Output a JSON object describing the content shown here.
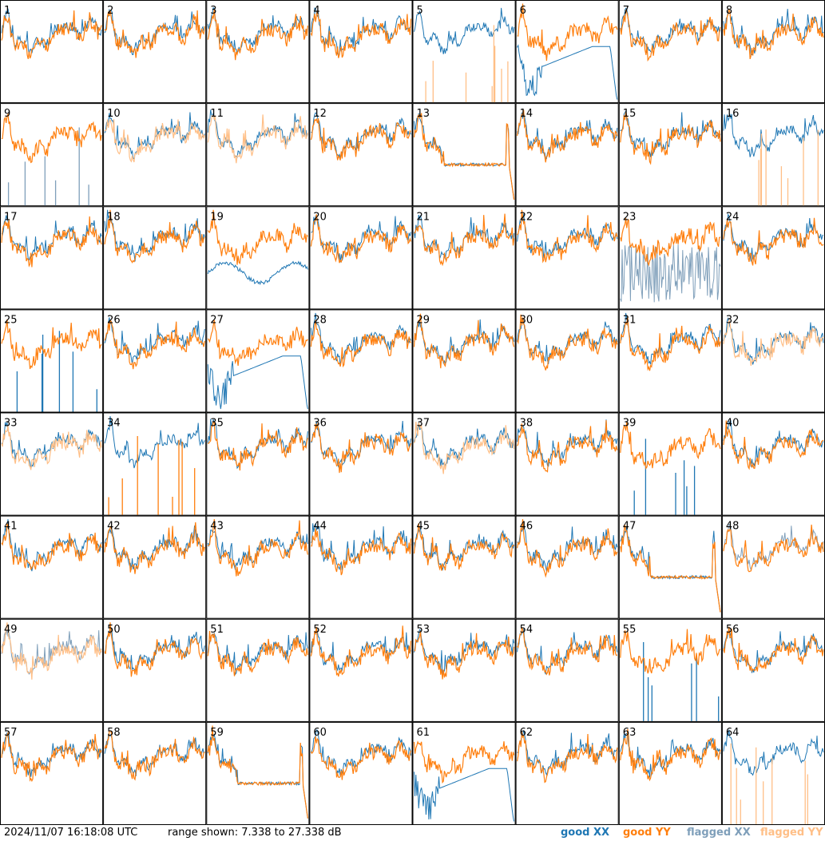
{
  "footer": {
    "timestamp": "2024/11/07 16:18:08 UTC",
    "range": "range shown: 7.338 to 27.338 dB"
  },
  "legend": [
    {
      "label": "good XX",
      "color": "#1f77b4"
    },
    {
      "label": "good YY",
      "color": "#ff7f0e"
    },
    {
      "label": "flagged XX",
      "color": "#7f9fba"
    },
    {
      "label": "flagged YY",
      "color": "#ffbf87"
    }
  ],
  "chart_data": {
    "type": "line",
    "grid_rows": 8,
    "grid_cols": 8,
    "y_range_db": [
      7.338,
      27.338
    ],
    "panels": [
      {
        "id": "1",
        "xx": "good",
        "yy": "good",
        "pattern": "normal"
      },
      {
        "id": "2",
        "xx": "good",
        "yy": "good",
        "pattern": "normal"
      },
      {
        "id": "3",
        "xx": "good",
        "yy": "good",
        "pattern": "normal"
      },
      {
        "id": "4",
        "xx": "good",
        "yy": "good",
        "pattern": "normal"
      },
      {
        "id": "5",
        "xx": "good",
        "yy": "flagged",
        "pattern": "yy-spikes"
      },
      {
        "id": "6",
        "xx": "good",
        "yy": "good",
        "pattern": "xx-dip"
      },
      {
        "id": "7",
        "xx": "good",
        "yy": "good",
        "pattern": "normal"
      },
      {
        "id": "8",
        "xx": "good",
        "yy": "good",
        "pattern": "normal"
      },
      {
        "id": "9",
        "xx": "flagged",
        "yy": "good",
        "pattern": "xx-spikes"
      },
      {
        "id": "10",
        "xx": "good",
        "yy": "flagged",
        "pattern": "normal"
      },
      {
        "id": "11",
        "xx": "good",
        "yy": "flagged",
        "pattern": "normal"
      },
      {
        "id": "12",
        "xx": "good",
        "yy": "good",
        "pattern": "normal"
      },
      {
        "id": "13",
        "xx": "good",
        "yy": "good",
        "pattern": "flat-drop"
      },
      {
        "id": "14",
        "xx": "good",
        "yy": "good",
        "pattern": "normal"
      },
      {
        "id": "15",
        "xx": "good",
        "yy": "good",
        "pattern": "normal"
      },
      {
        "id": "16",
        "xx": "good",
        "yy": "flagged",
        "pattern": "yy-spikes"
      },
      {
        "id": "17",
        "xx": "good",
        "yy": "good",
        "pattern": "normal"
      },
      {
        "id": "18",
        "xx": "good",
        "yy": "good",
        "pattern": "normal"
      },
      {
        "id": "19",
        "xx": "good",
        "yy": "good",
        "pattern": "xx-low"
      },
      {
        "id": "20",
        "xx": "good",
        "yy": "good",
        "pattern": "normal"
      },
      {
        "id": "21",
        "xx": "good",
        "yy": "good",
        "pattern": "normal"
      },
      {
        "id": "22",
        "xx": "good",
        "yy": "good",
        "pattern": "normal"
      },
      {
        "id": "23",
        "xx": "flagged",
        "yy": "good",
        "pattern": "xx-noise"
      },
      {
        "id": "24",
        "xx": "good",
        "yy": "good",
        "pattern": "normal"
      },
      {
        "id": "25",
        "xx": "good",
        "yy": "good",
        "pattern": "xx-spikes"
      },
      {
        "id": "26",
        "xx": "good",
        "yy": "good",
        "pattern": "normal"
      },
      {
        "id": "27",
        "xx": "good",
        "yy": "good",
        "pattern": "xx-dip"
      },
      {
        "id": "28",
        "xx": "good",
        "yy": "good",
        "pattern": "normal"
      },
      {
        "id": "29",
        "xx": "good",
        "yy": "good",
        "pattern": "normal"
      },
      {
        "id": "30",
        "xx": "good",
        "yy": "good",
        "pattern": "normal"
      },
      {
        "id": "31",
        "xx": "good",
        "yy": "good",
        "pattern": "normal"
      },
      {
        "id": "32",
        "xx": "good",
        "yy": "flagged",
        "pattern": "normal"
      },
      {
        "id": "33",
        "xx": "good",
        "yy": "flagged",
        "pattern": "normal"
      },
      {
        "id": "34",
        "xx": "good",
        "yy": "good",
        "pattern": "yy-spikes"
      },
      {
        "id": "35",
        "xx": "good",
        "yy": "good",
        "pattern": "normal"
      },
      {
        "id": "36",
        "xx": "good",
        "yy": "good",
        "pattern": "normal"
      },
      {
        "id": "37",
        "xx": "good",
        "yy": "flagged",
        "pattern": "normal"
      },
      {
        "id": "38",
        "xx": "good",
        "yy": "good",
        "pattern": "normal"
      },
      {
        "id": "39",
        "xx": "good",
        "yy": "good",
        "pattern": "xx-spikes"
      },
      {
        "id": "40",
        "xx": "good",
        "yy": "good",
        "pattern": "normal"
      },
      {
        "id": "41",
        "xx": "good",
        "yy": "good",
        "pattern": "normal"
      },
      {
        "id": "42",
        "xx": "good",
        "yy": "good",
        "pattern": "normal"
      },
      {
        "id": "43",
        "xx": "good",
        "yy": "good",
        "pattern": "normal"
      },
      {
        "id": "44",
        "xx": "good",
        "yy": "good",
        "pattern": "normal"
      },
      {
        "id": "45",
        "xx": "good",
        "yy": "good",
        "pattern": "normal"
      },
      {
        "id": "46",
        "xx": "good",
        "yy": "good",
        "pattern": "normal"
      },
      {
        "id": "47",
        "xx": "good",
        "yy": "good",
        "pattern": "flat-drop"
      },
      {
        "id": "48",
        "xx": "flagged",
        "yy": "good",
        "pattern": "normal"
      },
      {
        "id": "49",
        "xx": "flagged",
        "yy": "flagged",
        "pattern": "normal"
      },
      {
        "id": "50",
        "xx": "good",
        "yy": "good",
        "pattern": "normal"
      },
      {
        "id": "51",
        "xx": "good",
        "yy": "good",
        "pattern": "normal"
      },
      {
        "id": "52",
        "xx": "good",
        "yy": "good",
        "pattern": "normal"
      },
      {
        "id": "53",
        "xx": "good",
        "yy": "good",
        "pattern": "normal"
      },
      {
        "id": "54",
        "xx": "good",
        "yy": "good",
        "pattern": "normal"
      },
      {
        "id": "55",
        "xx": "good",
        "yy": "good",
        "pattern": "xx-spikes"
      },
      {
        "id": "56",
        "xx": "good",
        "yy": "good",
        "pattern": "normal"
      },
      {
        "id": "57",
        "xx": "good",
        "yy": "good",
        "pattern": "normal"
      },
      {
        "id": "58",
        "xx": "good",
        "yy": "good",
        "pattern": "normal"
      },
      {
        "id": "59",
        "xx": "good",
        "yy": "good",
        "pattern": "flat-drop"
      },
      {
        "id": "60",
        "xx": "good",
        "yy": "good",
        "pattern": "normal"
      },
      {
        "id": "61",
        "xx": "good",
        "yy": "good",
        "pattern": "xx-dip"
      },
      {
        "id": "62",
        "xx": "good",
        "yy": "good",
        "pattern": "normal"
      },
      {
        "id": "63",
        "xx": "good",
        "yy": "good",
        "pattern": "normal"
      },
      {
        "id": "64",
        "xx": "good",
        "yy": "flagged",
        "pattern": "yy-spikes"
      }
    ]
  }
}
